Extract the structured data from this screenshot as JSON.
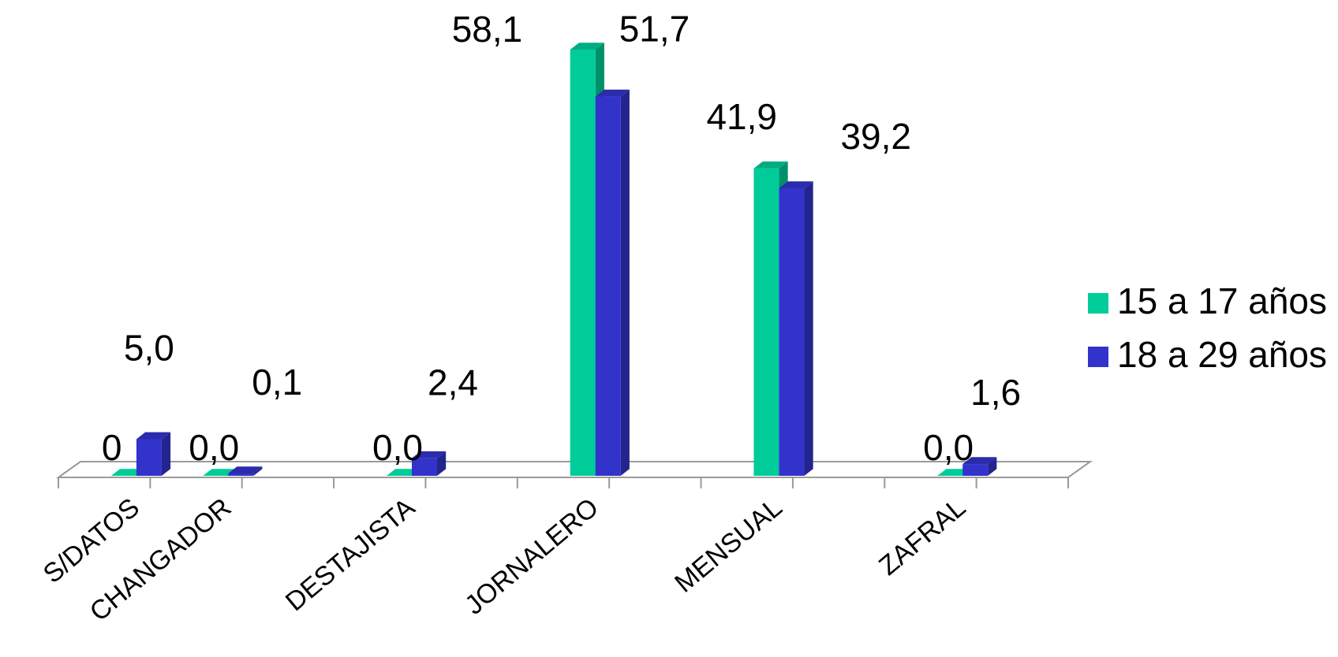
{
  "chart_data": {
    "type": "bar",
    "style": "3d-clustered-column",
    "categories": [
      "S/DATOS",
      "CHANGADOR",
      "DESTAJISTA",
      "JORNALERO",
      "MENSUAL",
      "ZAFRAL"
    ],
    "series": [
      {
        "name": "15 a 17 años",
        "color": "#00cc99",
        "values": [
          0,
          0.0,
          0.0,
          58.1,
          41.9,
          0.0
        ],
        "labels": [
          "0",
          "0,0",
          "0,0",
          "58,1",
          "41,9",
          "0,0"
        ]
      },
      {
        "name": "18 a 29 años",
        "color": "#3333cc",
        "values": [
          5.0,
          0.1,
          2.4,
          51.7,
          39.2,
          1.6
        ],
        "labels": [
          "5,0",
          "0,1",
          "2,4",
          "51,7",
          "39,2",
          "1,6"
        ]
      }
    ],
    "ylim": [
      0,
      60
    ],
    "grid": false,
    "legend": "right"
  }
}
